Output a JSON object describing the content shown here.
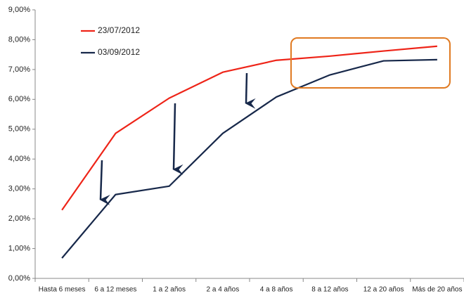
{
  "chart_data": {
    "type": "line",
    "categories": [
      "Hasta 6 meses",
      "6 a 12 meses",
      "1 a 2 años",
      "2 a 4 años",
      "4 a 8 años",
      "8 a 12 años",
      "12 a 20 años",
      "Más de 20 años"
    ],
    "series": [
      {
        "name": "23/07/2012",
        "color": "#ee2418",
        "values": [
          2.29,
          4.86,
          6.04,
          6.91,
          7.31,
          7.45,
          7.62,
          7.78
        ]
      },
      {
        "name": "03/09/2012",
        "color": "#17284a",
        "values": [
          0.68,
          2.81,
          3.09,
          4.86,
          6.08,
          6.82,
          7.29,
          7.33
        ]
      }
    ],
    "ylim": [
      0,
      9
    ],
    "yticks": [
      {
        "value": 0,
        "label": "0,00%"
      },
      {
        "value": 1,
        "label": "1,00%"
      },
      {
        "value": 2,
        "label": "2,00%"
      },
      {
        "value": 3,
        "label": "3,00%"
      },
      {
        "value": 4,
        "label": "4,00%"
      },
      {
        "value": 5,
        "label": "5,00%"
      },
      {
        "value": 6,
        "label": "6,00%"
      },
      {
        "value": 7,
        "label": "7,00%"
      },
      {
        "value": 8,
        "label": "8,00%"
      },
      {
        "value": 9,
        "label": "9,00%"
      }
    ],
    "grid": false
  }
}
